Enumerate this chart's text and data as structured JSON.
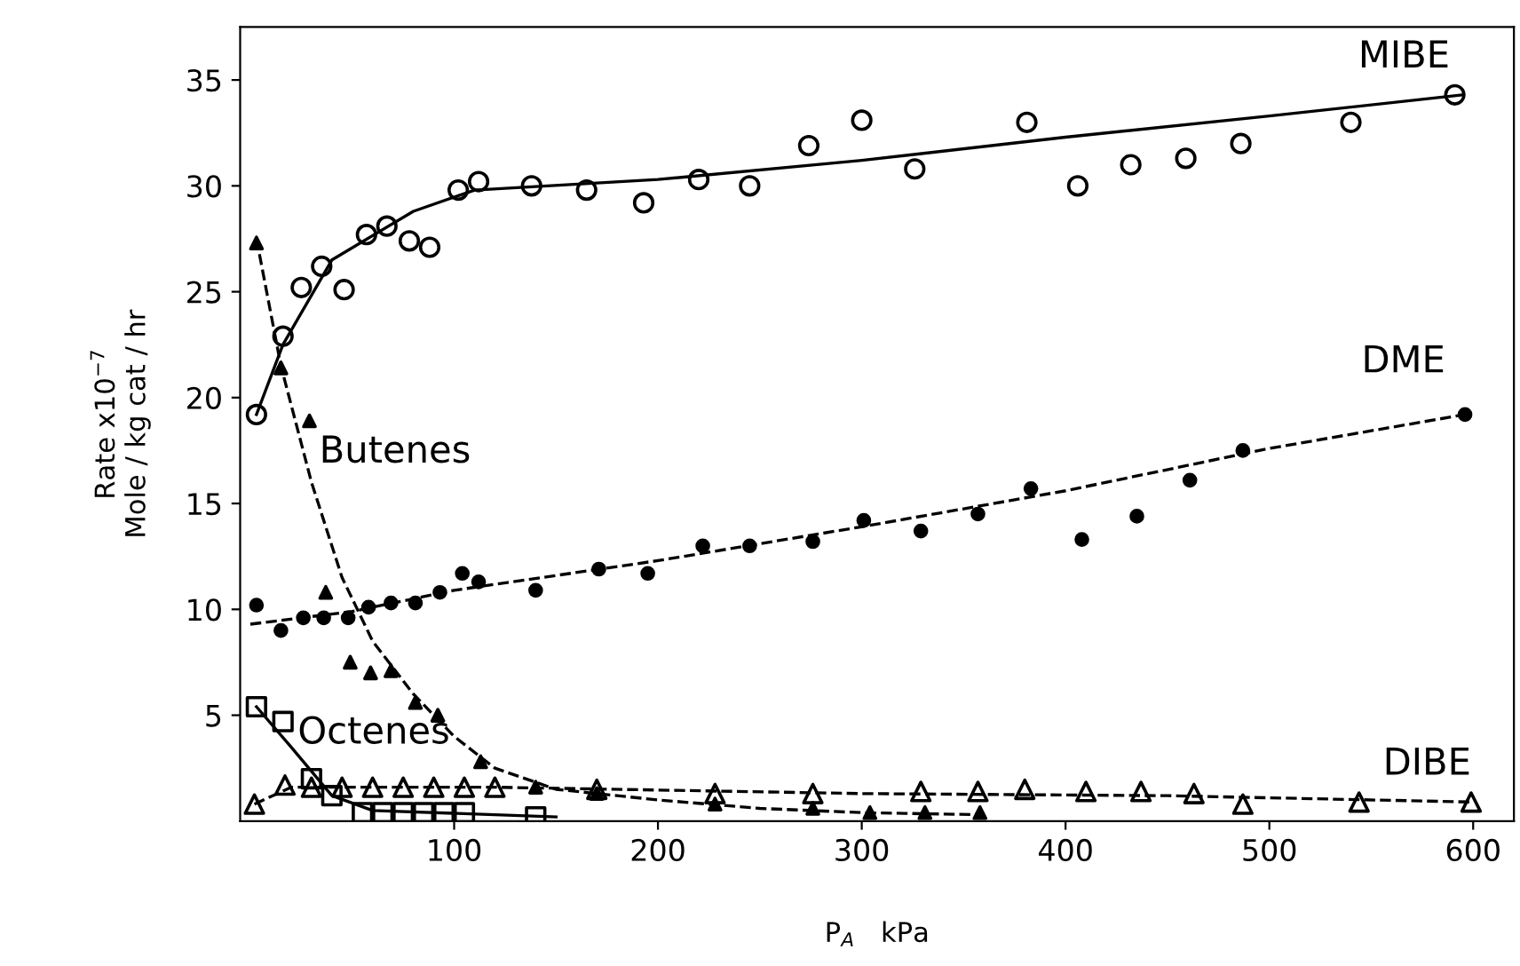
{
  "chart_data": {
    "type": "scatter",
    "xlabel": "P$_{A}$   kPa",
    "ylabel": "Rate x10$^{−7}$\nMole / kg cat / hr",
    "xlim": [
      -5,
      620
    ],
    "ylim": [
      0,
      37.5
    ],
    "xticks": [
      100,
      200,
      300,
      400,
      500,
      600
    ],
    "yticks": [
      5,
      10,
      15,
      20,
      25,
      30,
      35
    ],
    "grid": false,
    "legend": false,
    "series": [
      {
        "name": "MIBE",
        "marker": "circle",
        "color": "#000000",
        "x": [
          3,
          16,
          25,
          35,
          46,
          57,
          67,
          78,
          88,
          102,
          112,
          138,
          165,
          193,
          220,
          245,
          274,
          300,
          326,
          381,
          406,
          432,
          459,
          486,
          540,
          591
        ],
        "values": [
          19.2,
          22.9,
          25.2,
          26.2,
          25.1,
          27.7,
          28.1,
          27.4,
          27.1,
          29.8,
          30.2,
          30.0,
          29.8,
          29.2,
          30.3,
          30.0,
          31.9,
          33.1,
          30.8,
          33.0,
          30.0,
          31.0,
          31.3,
          32.0,
          33.0,
          34.3
        ]
      },
      {
        "name": "DME",
        "marker": "circle",
        "color": "#000000",
        "x": [
          3,
          15,
          26,
          36,
          48,
          58,
          69,
          81,
          93,
          104,
          112,
          140,
          171,
          195,
          222,
          245,
          276,
          301,
          329,
          357,
          383,
          408,
          435,
          461,
          487,
          596
        ],
        "values": [
          10.2,
          9.0,
          9.6,
          9.6,
          9.6,
          10.1,
          10.3,
          10.3,
          10.8,
          11.7,
          11.3,
          10.9,
          11.9,
          11.7,
          13.0,
          13.0,
          13.2,
          14.2,
          13.7,
          14.5,
          15.7,
          13.3,
          14.4,
          16.1,
          17.5,
          19.2
        ]
      },
      {
        "name": "Butenes",
        "marker": "triangle",
        "color": "#000000",
        "x": [
          3,
          15,
          29,
          37,
          49,
          59,
          69,
          81,
          92,
          113,
          140,
          170,
          228,
          276,
          304,
          331,
          358
        ],
        "values": [
          27.3,
          21.4,
          18.9,
          10.8,
          7.5,
          7.0,
          7.1,
          5.6,
          5.0,
          2.8,
          1.6,
          1.3,
          0.8,
          0.6,
          0.4,
          0.4,
          0.4
        ]
      },
      {
        "name": "Octenes",
        "marker": "square",
        "color": "#000000",
        "x": [
          3,
          16,
          30,
          40,
          55,
          65,
          75,
          85,
          95,
          105,
          140
        ],
        "values": [
          5.4,
          4.7,
          2.0,
          1.2,
          0.4,
          0.4,
          0.4,
          0.4,
          0.4,
          0.4,
          0.2
        ]
      },
      {
        "name": "DIBE",
        "marker": "triangle",
        "color": "#000000",
        "x": [
          2,
          17,
          30,
          45,
          60,
          75,
          90,
          105,
          120,
          170,
          228,
          276,
          329,
          357,
          380,
          410,
          437,
          463,
          487,
          544,
          599
        ],
        "values": [
          0.8,
          1.7,
          1.6,
          1.6,
          1.6,
          1.6,
          1.6,
          1.6,
          1.6,
          1.5,
          1.3,
          1.3,
          1.4,
          1.4,
          1.5,
          1.4,
          1.4,
          1.3,
          0.8,
          0.9,
          0.9
        ]
      },
      {
        "type": "line",
        "line_style": "solid",
        "color": "#000000",
        "x": [
          3,
          16,
          40,
          80,
          110,
          200,
          300,
          400,
          500,
          595
        ],
        "values": [
          19.2,
          22.5,
          26.5,
          28.8,
          29.8,
          30.3,
          31.2,
          32.3,
          33.3,
          34.3
        ]
      },
      {
        "type": "line",
        "line_style": "dashed",
        "color": "#000000",
        "x": [
          0,
          50,
          100,
          200,
          300,
          400,
          500,
          596
        ],
        "values": [
          9.3,
          9.9,
          10.9,
          12.3,
          13.9,
          15.6,
          17.6,
          19.2
        ]
      },
      {
        "type": "line",
        "line_style": "dashed",
        "color": "#000000",
        "x": [
          3,
          15,
          30,
          45,
          60,
          80,
          100,
          120,
          150,
          200,
          250,
          300,
          360
        ],
        "values": [
          27.5,
          21.5,
          16,
          11.5,
          8.5,
          6,
          4,
          2.5,
          1.5,
          1.0,
          0.6,
          0.4,
          0.3
        ]
      },
      {
        "type": "line",
        "line_style": "solid",
        "color": "#000000",
        "x": [
          3,
          20,
          40,
          60,
          150
        ],
        "values": [
          5.4,
          3.5,
          1.2,
          0.5,
          0.2
        ]
      },
      {
        "type": "line",
        "line_style": "dashed",
        "color": "#000000",
        "x": [
          2,
          20,
          120,
          300,
          450,
          600
        ],
        "values": [
          0.8,
          1.6,
          1.6,
          1.3,
          1.2,
          0.9
        ]
      }
    ]
  }
}
